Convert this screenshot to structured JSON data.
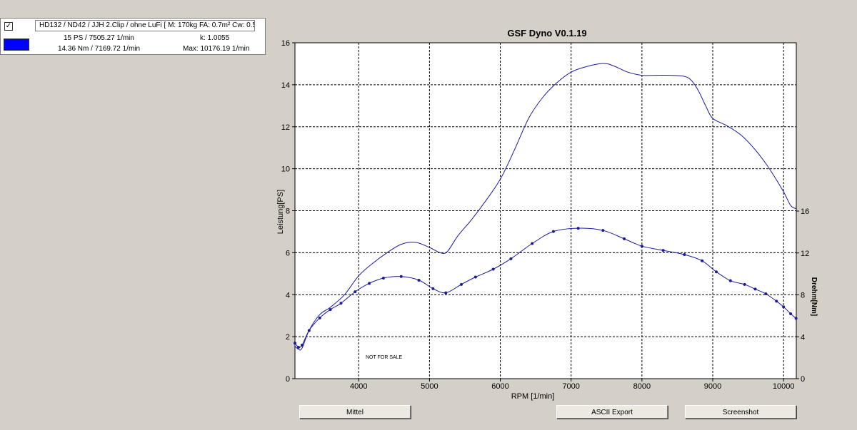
{
  "legend": {
    "checkbox_mark": "✓",
    "description": "HD132 / ND42 / JJH 2.Clip / ohne LuFi [ M: 170kg  FA: 0.7m²  Cw: 0.5",
    "swatch_color": "#0000ff",
    "peak_power": "15 PS / 7505.27 1/min",
    "peak_torque": "14.36 Nm / 7169.72 1/min",
    "k_value": "k: 1.0055",
    "max_rpm": "Max: 10176.19 1/min"
  },
  "buttons": {
    "mittel": "Mittel",
    "ascii_export": "ASCII Export",
    "screenshot": "Screenshot"
  },
  "watermark": "NOT FOR SALE",
  "chart_data": {
    "type": "line",
    "title": "GSF Dyno V0.1.19",
    "xlabel": "RPM [1/min]",
    "ylabel": "Leistung[PS]",
    "y2label": "Drehm[Nm]",
    "xlim": [
      3100,
      10180
    ],
    "ylim": [
      0,
      16
    ],
    "y2lim": [
      0,
      16
    ],
    "xticks": [
      4000,
      5000,
      6000,
      7000,
      8000,
      9000,
      10000
    ],
    "yticks": [
      0,
      2,
      4,
      6,
      8,
      10,
      12,
      14,
      16
    ],
    "y2ticks": [
      0,
      4,
      8,
      12,
      16
    ],
    "grid": true,
    "line_color": "#1a1aa0",
    "series": [
      {
        "axis": "y",
        "markers": false,
        "points": [
          [
            3100,
            1.55
          ],
          [
            3150,
            1.4
          ],
          [
            3200,
            1.45
          ],
          [
            3300,
            2.3
          ],
          [
            3450,
            3.05
          ],
          [
            3600,
            3.4
          ],
          [
            3800,
            4.0
          ],
          [
            4000,
            4.9
          ],
          [
            4200,
            5.5
          ],
          [
            4400,
            6.0
          ],
          [
            4600,
            6.4
          ],
          [
            4800,
            6.5
          ],
          [
            5000,
            6.25
          ],
          [
            5150,
            6.0
          ],
          [
            5250,
            6.05
          ],
          [
            5400,
            6.8
          ],
          [
            5600,
            7.6
          ],
          [
            5800,
            8.5
          ],
          [
            6000,
            9.5
          ],
          [
            6200,
            10.9
          ],
          [
            6400,
            12.4
          ],
          [
            6600,
            13.4
          ],
          [
            6800,
            14.1
          ],
          [
            7000,
            14.6
          ],
          [
            7200,
            14.85
          ],
          [
            7400,
            15.0
          ],
          [
            7505,
            15.0
          ],
          [
            7600,
            14.9
          ],
          [
            7700,
            14.75
          ],
          [
            7800,
            14.6
          ],
          [
            8000,
            14.45
          ],
          [
            8200,
            14.45
          ],
          [
            8400,
            14.45
          ],
          [
            8600,
            14.4
          ],
          [
            8700,
            14.2
          ],
          [
            8800,
            13.7
          ],
          [
            8900,
            13.0
          ],
          [
            9000,
            12.4
          ],
          [
            9200,
            12.05
          ],
          [
            9400,
            11.6
          ],
          [
            9600,
            10.9
          ],
          [
            9800,
            10.0
          ],
          [
            10000,
            8.9
          ],
          [
            10100,
            8.25
          ],
          [
            10176,
            8.1
          ]
        ]
      },
      {
        "axis": "y2",
        "markers": true,
        "points": [
          [
            3100,
            3.4
          ],
          [
            3150,
            3.0
          ],
          [
            3200,
            3.2
          ],
          [
            3300,
            4.6
          ],
          [
            3450,
            5.8
          ],
          [
            3600,
            6.6
          ],
          [
            3750,
            7.2
          ],
          [
            3950,
            8.3
          ],
          [
            4150,
            9.1
          ],
          [
            4350,
            9.6
          ],
          [
            4600,
            9.75
          ],
          [
            4850,
            9.4
          ],
          [
            5050,
            8.6
          ],
          [
            5230,
            8.2
          ],
          [
            5450,
            9.0
          ],
          [
            5650,
            9.7
          ],
          [
            5900,
            10.45
          ],
          [
            6150,
            11.45
          ],
          [
            6450,
            12.9
          ],
          [
            6750,
            14.05
          ],
          [
            7100,
            14.36
          ],
          [
            7450,
            14.15
          ],
          [
            7750,
            13.35
          ],
          [
            8000,
            12.65
          ],
          [
            8300,
            12.25
          ],
          [
            8600,
            11.85
          ],
          [
            8850,
            11.25
          ],
          [
            9050,
            10.2
          ],
          [
            9250,
            9.35
          ],
          [
            9450,
            9.0
          ],
          [
            9600,
            8.55
          ],
          [
            9750,
            8.1
          ],
          [
            9900,
            7.4
          ],
          [
            10000,
            6.85
          ],
          [
            10100,
            6.2
          ],
          [
            10176,
            5.75
          ]
        ]
      }
    ]
  }
}
